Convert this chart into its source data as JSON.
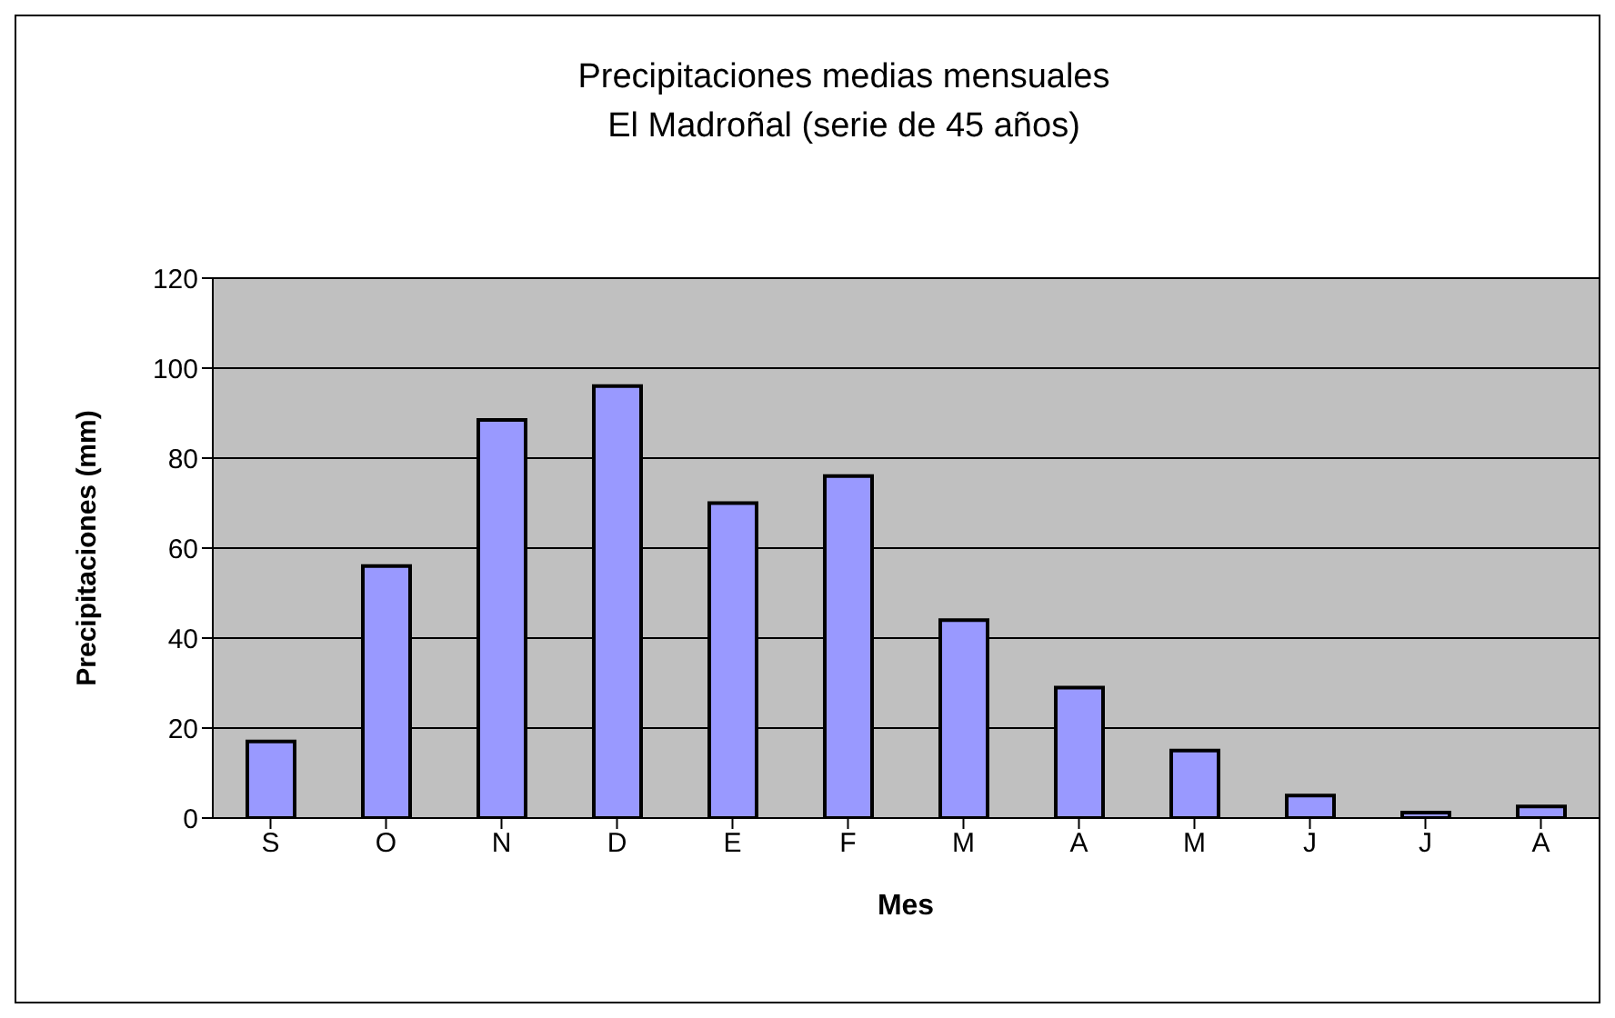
{
  "chart_data": {
    "type": "bar",
    "title": "Precipitaciones medias mensuales",
    "subtitle": "El Madroñal (serie de 45 años)",
    "xlabel": "Mes",
    "ylabel": "Precipitaciones (mm)",
    "categories": [
      "S",
      "O",
      "N",
      "D",
      "E",
      "F",
      "M",
      "A",
      "M",
      "J",
      "J",
      "A"
    ],
    "values": [
      17,
      56,
      88.5,
      96,
      70,
      76,
      44,
      29,
      15,
      5,
      1.2,
      2.6
    ],
    "color": "#9999ff",
    "ylim": [
      0,
      120
    ],
    "yticks": [
      0,
      20,
      40,
      60,
      80,
      100,
      120
    ],
    "grid": "y"
  }
}
